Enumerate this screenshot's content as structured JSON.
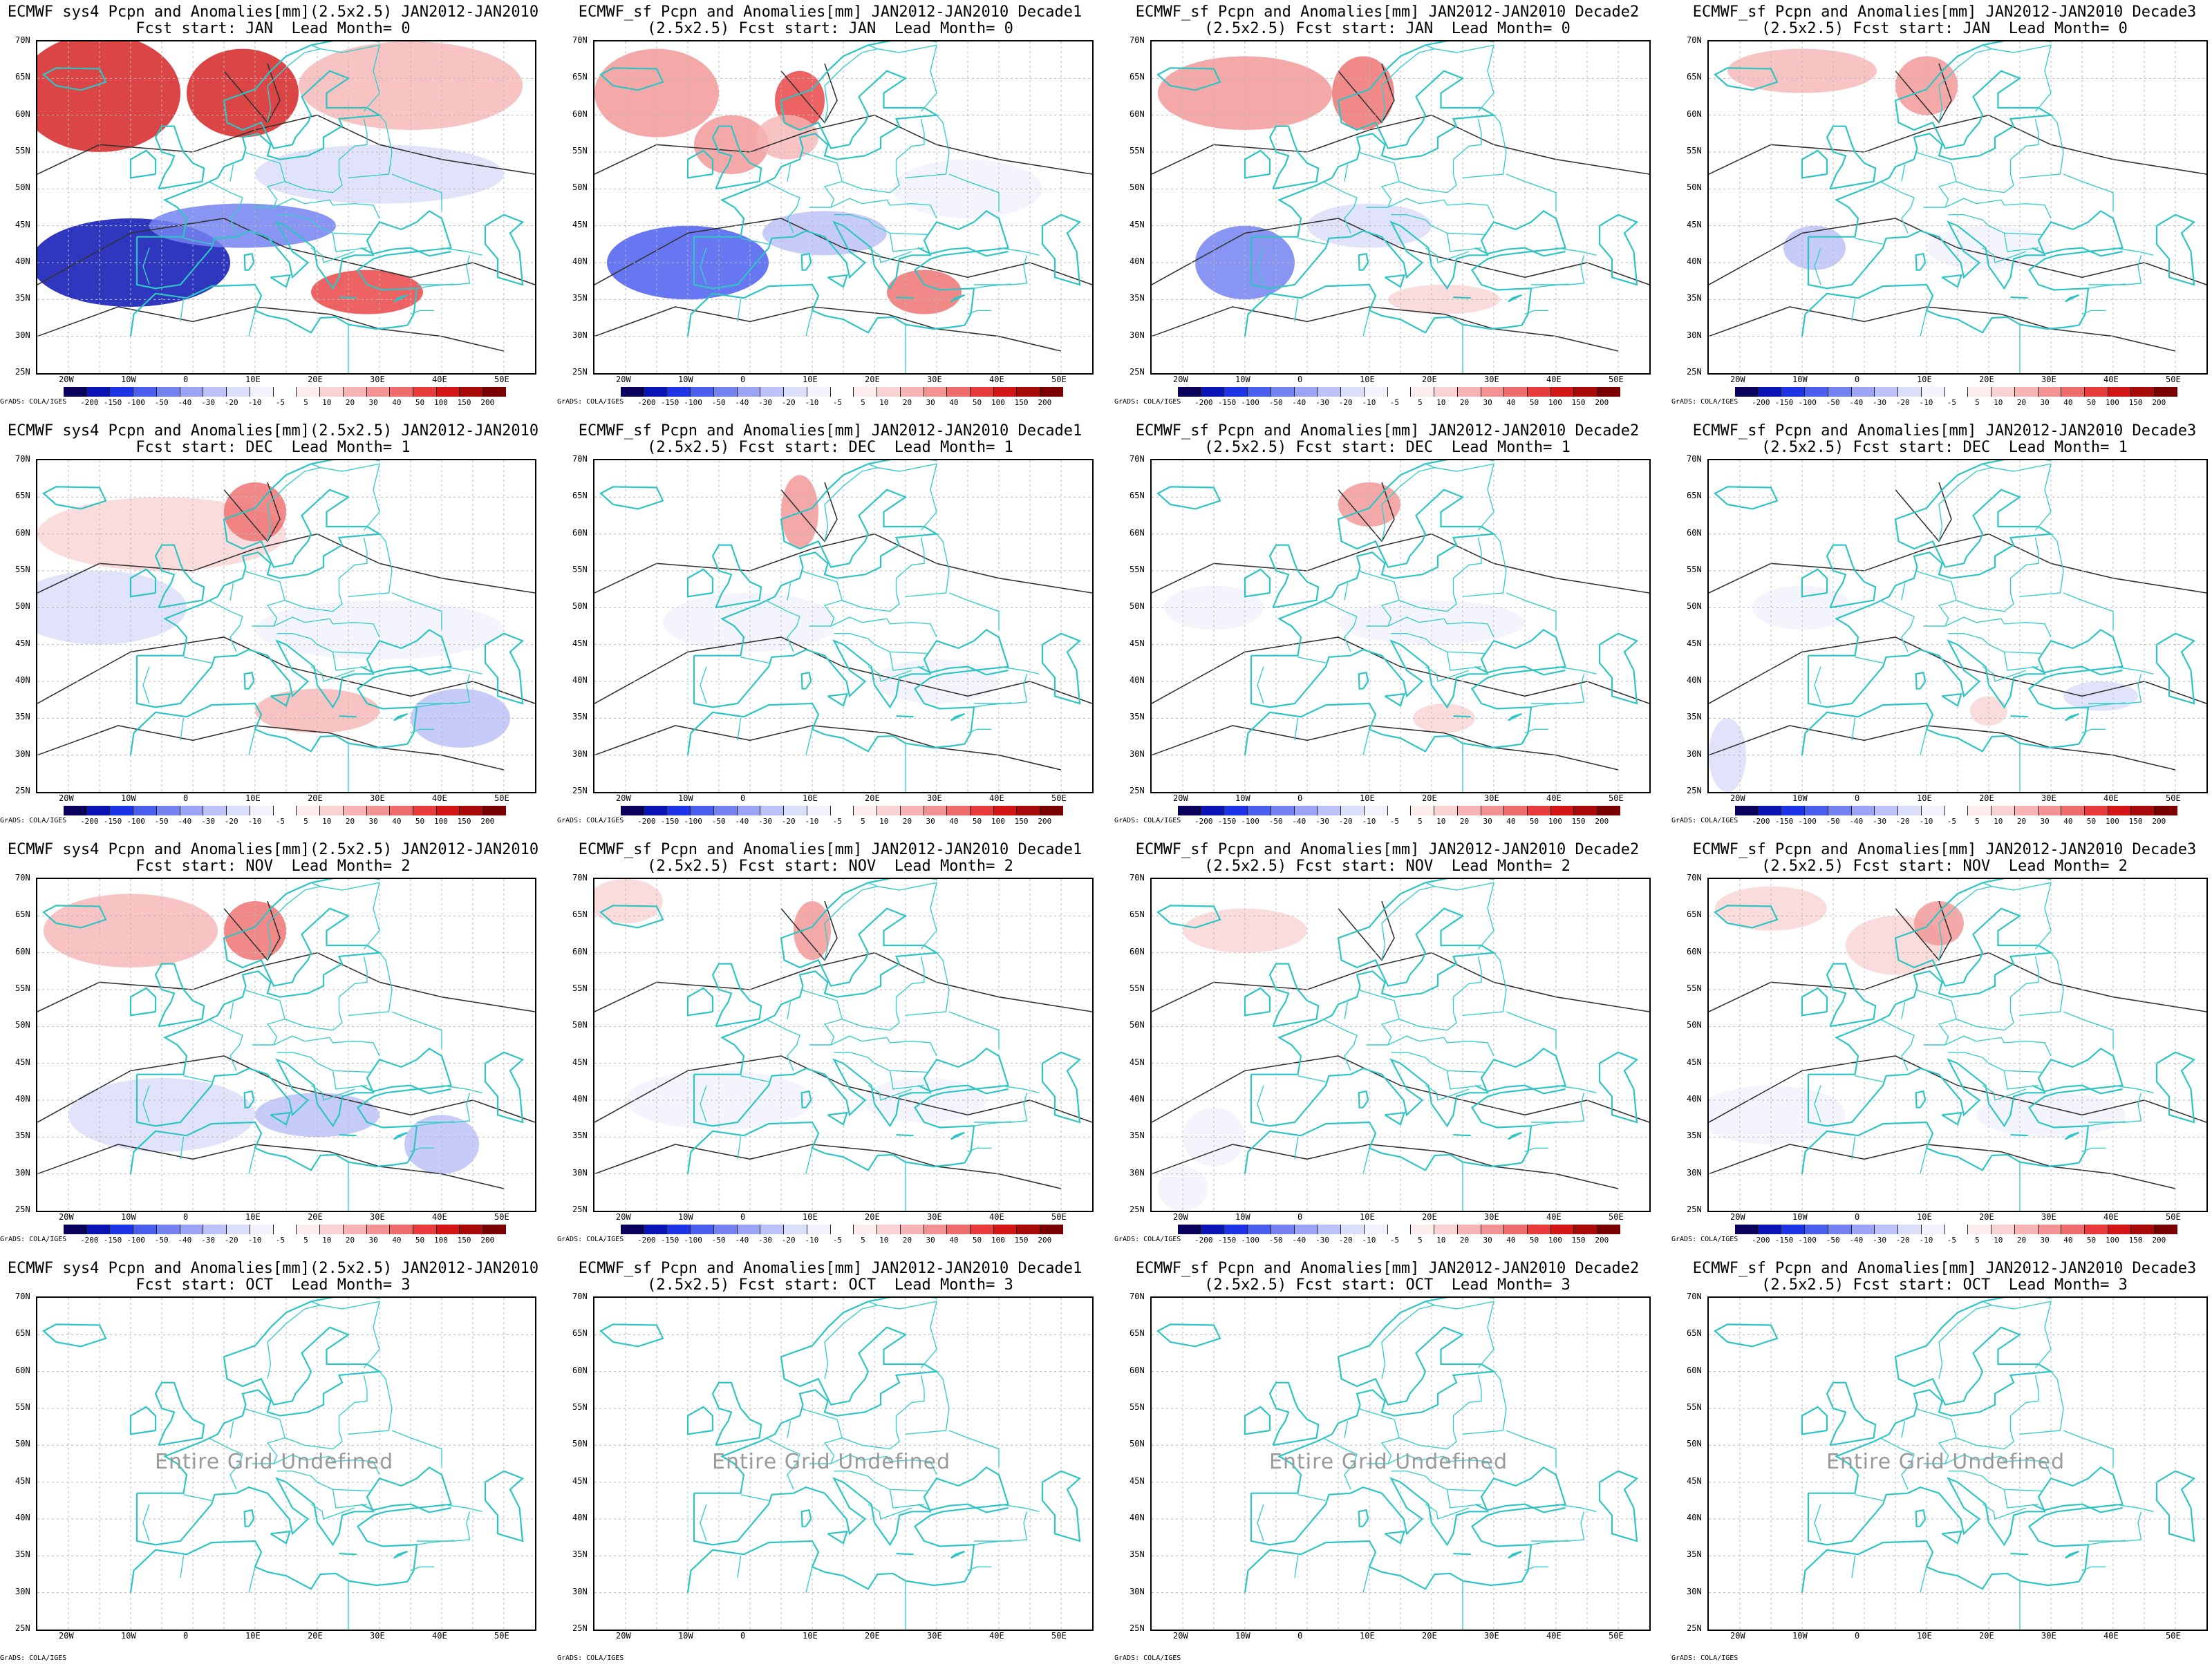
{
  "colorbar": {
    "labels": [
      "-200",
      "-150",
      "-100",
      "-50",
      "-40",
      "-30",
      "-20",
      "-10",
      "-5",
      "5",
      "10",
      "20",
      "30",
      "40",
      "50",
      "100",
      "150",
      "200"
    ],
    "colors": [
      "#08005a",
      "#0a14b4",
      "#1e32e6",
      "#4b5fee",
      "#7482f0",
      "#9aa3f4",
      "#bcc2f7",
      "#dadef9",
      "#f1f2fc",
      "#ffffff",
      "#fcecec",
      "#f9d3d3",
      "#f6b4b4",
      "#f29292",
      "#ee6c6c",
      "#e83c3c",
      "#d21616",
      "#a80a0a",
      "#7a0000"
    ]
  },
  "credit_text": "GrADS: COLA/IGES",
  "undefined_text": "Entire Grid Undefined",
  "lat_labels": [
    "70N",
    "65N",
    "60N",
    "55N",
    "50N",
    "45N",
    "40N",
    "35N",
    "30N",
    "25N"
  ],
  "lon_labels": [
    "20W",
    "10W",
    "0",
    "10E",
    "20E",
    "30E",
    "40E",
    "50E"
  ],
  "map_extent": {
    "lon_min": -25,
    "lon_max": 55,
    "lat_min": 25,
    "lat_max": 70
  },
  "panels": [
    {
      "title1": "ECMWF sys4 Pcpn and Anomalies[mm](2.5x2.5) JAN2012-JAN2010",
      "title2": "Fcst start: JAN  Lead Month= 0",
      "defined": true
    },
    {
      "title1": "ECMWF_sf Pcpn and Anomalies[mm] JAN2012-JAN2010 Decade1",
      "title2": "(2.5x2.5) Fcst start: JAN  Lead Month= 0",
      "defined": true
    },
    {
      "title1": "ECMWF_sf Pcpn and Anomalies[mm] JAN2012-JAN2010 Decade2",
      "title2": "(2.5x2.5) Fcst start: JAN  Lead Month= 0",
      "defined": true
    },
    {
      "title1": "ECMWF_sf Pcpn and Anomalies[mm] JAN2012-JAN2010 Decade3",
      "title2": "(2.5x2.5) Fcst start: JAN  Lead Month= 0",
      "defined": true
    },
    {
      "title1": "ECMWF sys4 Pcpn and Anomalies[mm](2.5x2.5) JAN2012-JAN2010",
      "title2": "Fcst start: DEC  Lead Month= 1",
      "defined": true
    },
    {
      "title1": "ECMWF_sf Pcpn and Anomalies[mm] JAN2012-JAN2010 Decade1",
      "title2": "(2.5x2.5) Fcst start: DEC  Lead Month= 1",
      "defined": true
    },
    {
      "title1": "ECMWF_sf Pcpn and Anomalies[mm] JAN2012-JAN2010 Decade2",
      "title2": "(2.5x2.5) Fcst start: DEC  Lead Month= 1",
      "defined": true
    },
    {
      "title1": "ECMWF_sf Pcpn and Anomalies[mm] JAN2012-JAN2010 Decade3",
      "title2": "(2.5x2.5) Fcst start: DEC  Lead Month= 1",
      "defined": true
    },
    {
      "title1": "ECMWF sys4 Pcpn and Anomalies[mm](2.5x2.5) JAN2012-JAN2010",
      "title2": "Fcst start: NOV  Lead Month= 2",
      "defined": true
    },
    {
      "title1": "ECMWF_sf Pcpn and Anomalies[mm] JAN2012-JAN2010 Decade1",
      "title2": "(2.5x2.5) Fcst start: NOV  Lead Month= 2",
      "defined": true
    },
    {
      "title1": "ECMWF_sf Pcpn and Anomalies[mm] JAN2012-JAN2010 Decade2",
      "title2": "(2.5x2.5) Fcst start: NOV  Lead Month= 2",
      "defined": true
    },
    {
      "title1": "ECMWF_sf Pcpn and Anomalies[mm] JAN2012-JAN2010 Decade3",
      "title2": "(2.5x2.5) Fcst start: NOV  Lead Month= 2",
      "defined": true
    },
    {
      "title1": "ECMWF sys4 Pcpn and Anomalies[mm](2.5x2.5) JAN2012-JAN2010",
      "title2": "Fcst start: OCT  Lead Month= 3",
      "defined": false
    },
    {
      "title1": "ECMWF_sf Pcpn and Anomalies[mm] JAN2012-JAN2010 Decade1",
      "title2": "(2.5x2.5) Fcst start: OCT  Lead Month= 3",
      "defined": false
    },
    {
      "title1": "ECMWF_sf Pcpn and Anomalies[mm] JAN2012-JAN2010 Decade2",
      "title2": "(2.5x2.5) Fcst start: OCT  Lead Month= 3",
      "defined": false
    },
    {
      "title1": "ECMWF_sf Pcpn and Anomalies[mm] JAN2012-JAN2010 Decade3",
      "title2": "(2.5x2.5) Fcst start: OCT  Lead Month= 3",
      "defined": false
    }
  ]
}
